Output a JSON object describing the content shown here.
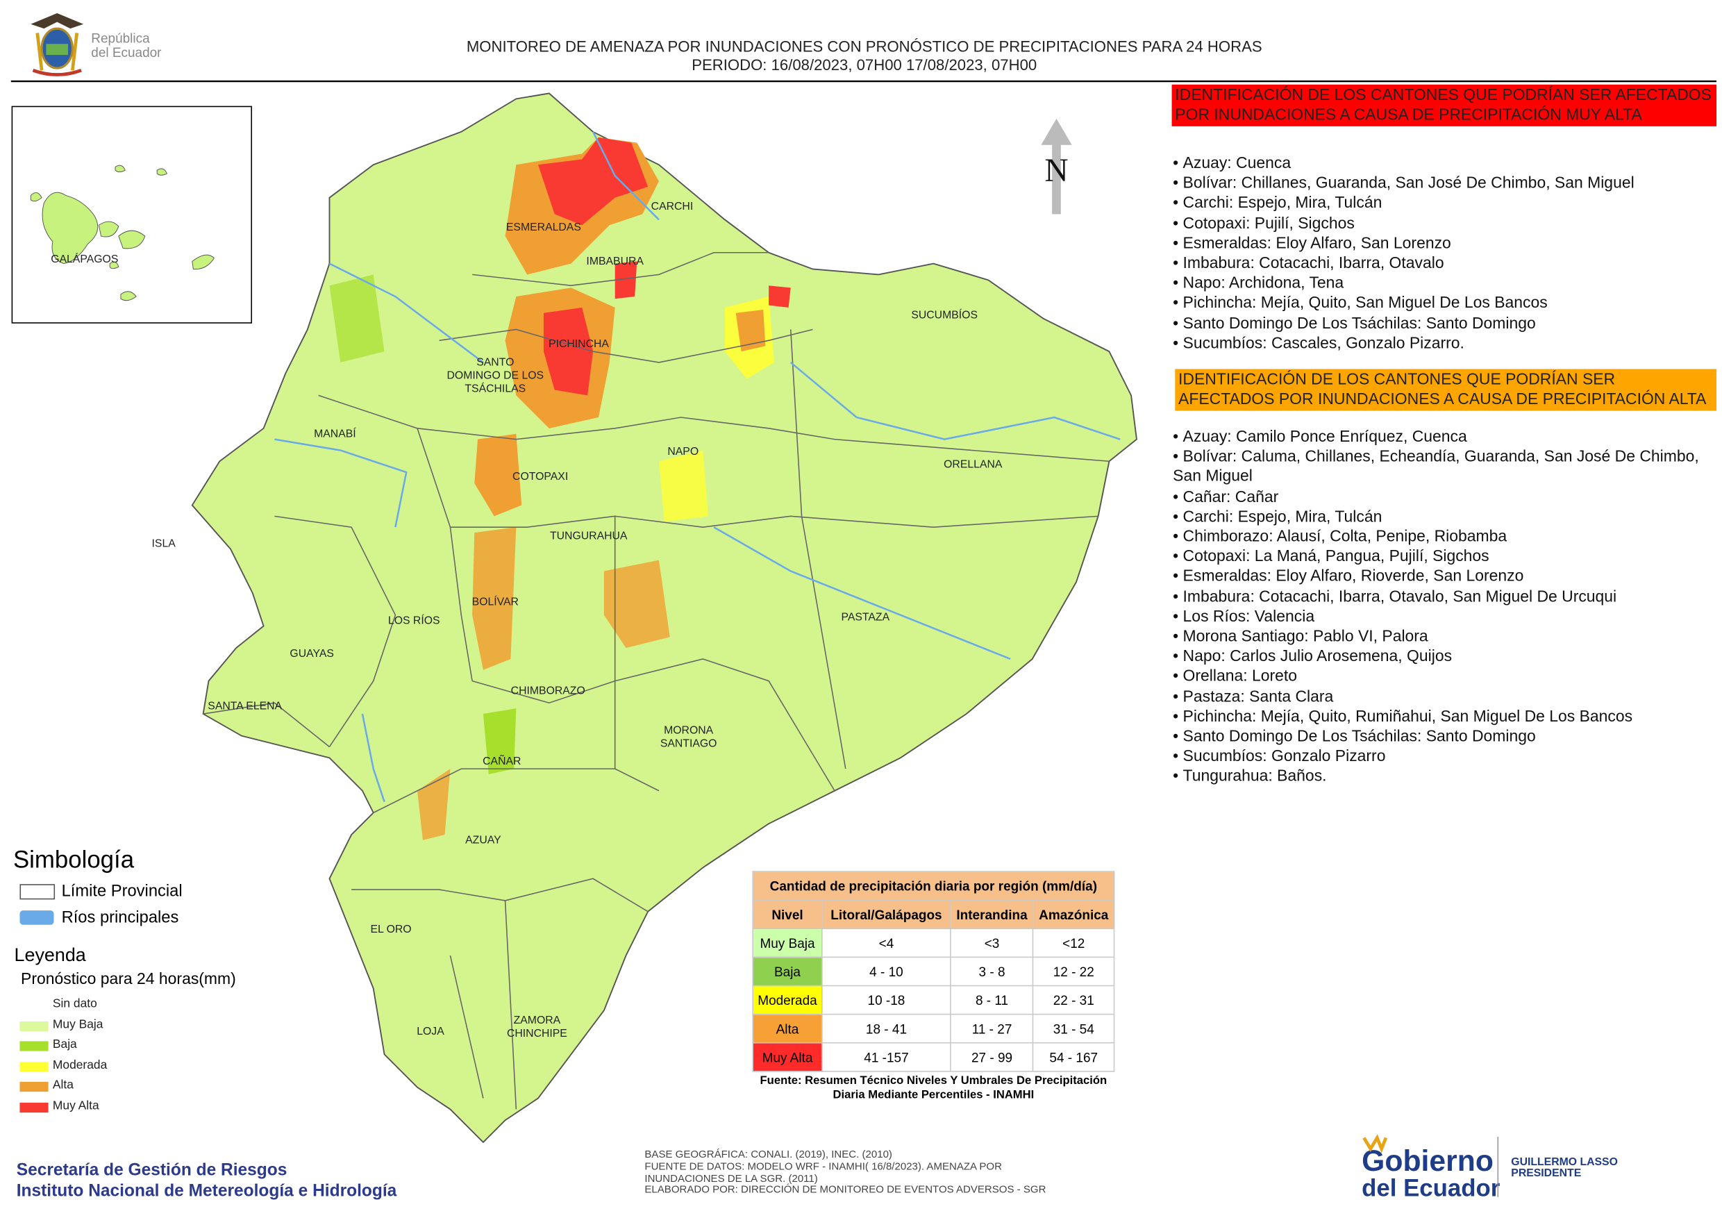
{
  "header": {
    "logo_text": [
      "República",
      "del Ecuador"
    ],
    "title": "MONITOREO DE AMENAZA POR INUNDACIONES  CON PRONÓSTICO DE  PRECIPITACIONES PARA 24 HORAS",
    "period": "PERIODO: 16/08/2023, 07H00 17/08/2023, 07H00"
  },
  "map": {
    "north": "N",
    "inset_label": "GALÁPAGOS",
    "province_labels": [
      [
        "ESMERALDAS"
      ],
      [
        "CARCHI"
      ],
      [
        "IMBABURA"
      ],
      [
        "SUCUMBÍOS"
      ],
      [
        "PICHINCHA"
      ],
      [
        "SANTO",
        "DOMINGO DE LOS",
        "TSÁCHILAS"
      ],
      [
        "MANABÍ"
      ],
      [
        "NAPO"
      ],
      [
        "ORELLANA"
      ],
      [
        "COTOPAXI"
      ],
      [
        "ISLA"
      ],
      [
        "TUNGURAHUA"
      ],
      [
        "BOLÍVAR"
      ],
      [
        "LOS RÍOS"
      ],
      [
        "PASTAZA"
      ],
      [
        "GUAYAS"
      ],
      [
        "CHIMBORAZO"
      ],
      [
        "SANTA ELENA"
      ],
      [
        "MORONA",
        "SANTIAGO"
      ],
      [
        "CAÑAR"
      ],
      [
        "AZUAY"
      ],
      [
        "EL ORO"
      ],
      [
        "ZAMORA",
        "CHINCHIPE"
      ],
      [
        "LOJA"
      ]
    ]
  },
  "panels": [
    {
      "title": "IDENTIFICACIÓN DE LOS CANTONES QUE PODRÍAN SER AFECTADOS POR INUNDACIONES  A CAUSA DE PRECIPITACIÓN MUY ALTA",
      "color": "#ff0000",
      "items": [
        "Azuay: Cuenca",
        "Bolívar: Chillanes, Guaranda, San José De Chimbo, San Miguel",
        "Carchi: Espejo, Mira, Tulcán",
        "Cotopaxi: Pujilí, Sigchos",
        "Esmeraldas: Eloy Alfaro, San Lorenzo",
        "Imbabura: Cotacachi, Ibarra, Otavalo",
        "Napo: Archidona, Tena",
        "Pichincha: Mejía, Quito, San Miguel De Los Bancos",
        "Santo Domingo De Los Tsáchilas: Santo Domingo",
        "Sucumbíos: Cascales, Gonzalo Pizarro."
      ]
    },
    {
      "title": "IDENTIFICACIÓN DE LOS CANTONES QUE  PODRÍAN SER AFECTADOS POR INUNDACIONES  A CAUSA DE PRECIPITACIÓN ALTA",
      "color": "#ffa500",
      "items": [
        "Azuay: Camilo Ponce Enríquez, Cuenca",
        "Bolívar: Caluma, Chillanes, Echeandía, Guaranda, San José De Chimbo, San Miguel",
        "Cañar: Cañar",
        "Carchi: Espejo, Mira, Tulcán",
        "Chimborazo: Alausí, Colta, Penipe, Riobamba",
        "Cotopaxi: La Maná, Pangua, Pujilí, Sigchos",
        "Esmeraldas: Eloy Alfaro, Rioverde, San Lorenzo",
        "Imbabura: Cotacachi, Ibarra, Otavalo, San Miguel De Urcuqui",
        "Los Ríos: Valencia",
        "Morona Santiago: Pablo VI, Palora",
        "Napo: Carlos Julio Arosemena, Quijos",
        "Orellana: Loreto",
        "Pastaza: Santa Clara",
        "Pichincha: Mejía, Quito, Rumiñahui, San Miguel De Los Bancos",
        "Santo Domingo De Los Tsáchilas: Santo Domingo",
        "Sucumbíos: Gonzalo Pizarro",
        "Tungurahua: Baños."
      ]
    }
  ],
  "symbology": {
    "title": "Simbología",
    "items": [
      "Límite Provincial",
      "Ríos principales"
    ]
  },
  "legend": {
    "title": "Leyenda",
    "subtitle": "Pronóstico para 24 horas(mm)",
    "items": [
      {
        "label": "Sin dato",
        "color": "#ffffff"
      },
      {
        "label": "Muy Baja",
        "color": "#dcfa9c"
      },
      {
        "label": "Baja",
        "color": "#a6e02c"
      },
      {
        "label": "Moderada",
        "color": "#ffff33"
      },
      {
        "label": "Alta",
        "color": "#f0a033"
      },
      {
        "label": "Muy Alta",
        "color": "#f83a32"
      }
    ]
  },
  "table": {
    "title": "Cantidad de precipitación diaria por región (mm/día)",
    "header": [
      "Nivel",
      "Litoral/Galápagos",
      "Interandina",
      "Amazónica"
    ],
    "rows": [
      [
        "Muy Baja",
        "<4",
        "<3",
        "<12"
      ],
      [
        "Baja",
        "4 - 10",
        "3 - 8",
        "12 - 22"
      ],
      [
        "Moderada",
        "10 -18",
        "8 - 11",
        "22 - 31"
      ],
      [
        "Alta",
        "18 - 41",
        "11 - 27",
        "31 - 54"
      ],
      [
        "Muy Alta",
        "41 -157",
        "27 - 99",
        "54 - 167"
      ]
    ],
    "level_colors": [
      "#ccffaa",
      "#8fd14f",
      "#ffff00",
      "#f7a035",
      "#ff2a2a"
    ],
    "source": "Fuente: Resumen Técnico Niveles Y Umbrales De Precipitación Diaria Mediante Percentiles - INAMHI"
  },
  "footer": {
    "org": [
      "Secretaría de Gestión de Riesgos",
      "Instituto Nacional de Metereología e Hidrología"
    ],
    "credits": [
      "BASE GEOGRÁFICA: CONALI. (2019), INEC. (2010)",
      "FUENTE DE DATOS: MODELO WRF - INAMHI( 16/8/2023).  AMENAZA POR",
      "INUNDACIONES DE LA SGR. (2011)",
      "ELABORADO POR: DIRECCIÓN DE MONITOREO DE EVENTOS ADVERSOS - SGR"
    ],
    "gov_logo": [
      "Gobierno",
      "del Ecuador"
    ],
    "president": [
      "GUILLERMO LASSO",
      "PRESIDENTE"
    ]
  }
}
